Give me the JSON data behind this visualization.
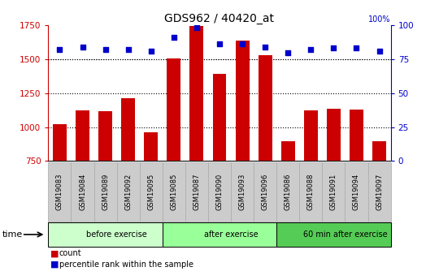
{
  "title": "GDS962 / 40420_at",
  "samples": [
    "GSM19083",
    "GSM19084",
    "GSM19089",
    "GSM19092",
    "GSM19095",
    "GSM19085",
    "GSM19087",
    "GSM19090",
    "GSM19093",
    "GSM19096",
    "GSM19086",
    "GSM19088",
    "GSM19091",
    "GSM19094",
    "GSM19097"
  ],
  "counts": [
    1020,
    1120,
    1115,
    1215,
    960,
    1505,
    1745,
    1390,
    1635,
    1530,
    895,
    1120,
    1135,
    1130,
    895
  ],
  "percentile_ranks": [
    82,
    84,
    82,
    82,
    81,
    91,
    98,
    86,
    86,
    84,
    80,
    82,
    83,
    83,
    81
  ],
  "groups": [
    {
      "label": "before exercise",
      "start": 0,
      "end": 5,
      "color": "#ccffcc"
    },
    {
      "label": "after exercise",
      "start": 5,
      "end": 10,
      "color": "#99ff99"
    },
    {
      "label": "60 min after exercise",
      "start": 10,
      "end": 15,
      "color": "#55cc55"
    }
  ],
  "bar_color": "#cc0000",
  "dot_color": "#0000cc",
  "ylim_left": [
    750,
    1750
  ],
  "ylim_right": [
    0,
    100
  ],
  "yticks_left": [
    750,
    1000,
    1250,
    1500,
    1750
  ],
  "yticks_right": [
    0,
    25,
    50,
    75,
    100
  ],
  "grid_values": [
    1000,
    1250,
    1500
  ],
  "bar_width": 0.6,
  "tick_label_color_left": "#cc0000",
  "tick_label_color_right": "#0000cc",
  "legend_items": [
    {
      "label": "count",
      "color": "#cc0000"
    },
    {
      "label": "percentile rank within the sample",
      "color": "#0000cc"
    }
  ],
  "plot_bg": "#ffffff",
  "tick_box_bg": "#cccccc",
  "tick_box_edge": "#aaaaaa"
}
